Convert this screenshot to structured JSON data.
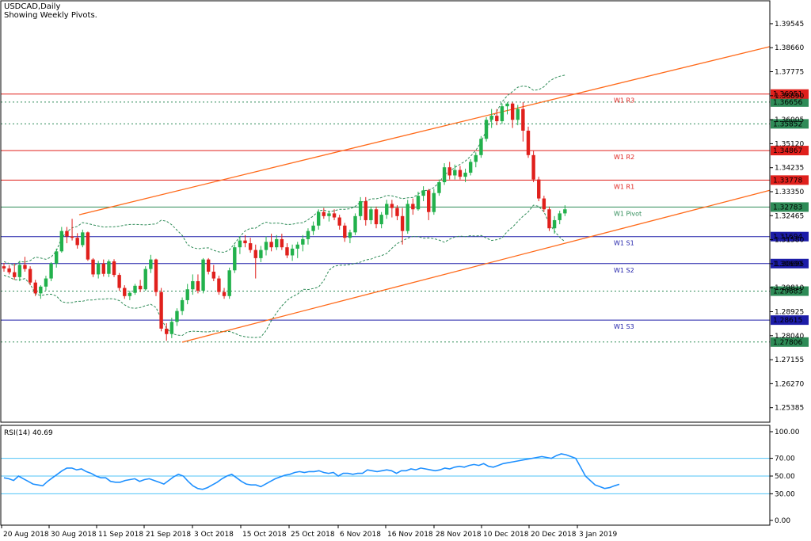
{
  "header": {
    "title": "USDCAD,Daily",
    "subtitle": "Showing Weekly Pivots."
  },
  "chart_data": {
    "type": "candlestick",
    "symbol": "USDCAD",
    "timeframe": "Daily",
    "ylim": [
      1.2485,
      1.4039
    ],
    "price_ticks": [
      "1.39545",
      "1.38660",
      "1.37775",
      "1.36890",
      "1.36005",
      "1.35120",
      "1.34235",
      "1.33350",
      "1.32465",
      "1.31580",
      "1.30695",
      "1.29810",
      "1.28925",
      "1.28040",
      "1.27155",
      "1.26270",
      "1.25385"
    ],
    "x_labels": [
      "20 Aug 2018",
      "30 Aug 2018",
      "11 Sep 2018",
      "21 Sep 2018",
      "3 Oct 2018",
      "15 Oct 2018",
      "25 Oct 2018",
      "6 Nov 2018",
      "16 Nov 2018",
      "28 Nov 2018",
      "10 Dec 2018",
      "20 Dec 2018",
      "3 Jan 2019"
    ],
    "candles": [
      [
        1.306,
        1.3072,
        1.304,
        1.3052
      ],
      [
        1.3052,
        1.3064,
        1.303,
        1.3038
      ],
      [
        1.3038,
        1.307,
        1.301,
        1.302
      ],
      [
        1.302,
        1.308,
        1.3005,
        1.3065
      ],
      [
        1.3065,
        1.3095,
        1.304,
        1.305
      ],
      [
        1.305,
        1.306,
        1.299,
        1.3
      ],
      [
        1.3,
        1.301,
        1.295,
        1.296
      ],
      [
        1.296,
        1.299,
        1.294,
        1.2985
      ],
      [
        1.2985,
        1.3025,
        1.297,
        1.3015
      ],
      [
        1.3015,
        1.3075,
        1.3005,
        1.307
      ],
      [
        1.307,
        1.3125,
        1.3055,
        1.3115
      ],
      [
        1.3115,
        1.3205,
        1.311,
        1.319
      ],
      [
        1.319,
        1.3205,
        1.3145,
        1.317
      ],
      [
        1.317,
        1.3235,
        1.3155,
        1.3165
      ],
      [
        1.3165,
        1.3182,
        1.3125,
        1.3138
      ],
      [
        1.3138,
        1.3195,
        1.313,
        1.3185
      ],
      [
        1.3185,
        1.3188,
        1.308,
        1.3085
      ],
      [
        1.3085,
        1.309,
        1.302,
        1.303
      ],
      [
        1.303,
        1.308,
        1.3015,
        1.307
      ],
      [
        1.307,
        1.3085,
        1.3022,
        1.3032
      ],
      [
        1.3032,
        1.3085,
        1.302,
        1.3078
      ],
      [
        1.3078,
        1.3086,
        1.302,
        1.3028
      ],
      [
        1.3028,
        1.3035,
        1.297,
        1.298
      ],
      [
        1.298,
        1.299,
        1.294,
        1.295
      ],
      [
        1.295,
        1.297,
        1.2935,
        1.2962
      ],
      [
        1.2962,
        1.2995,
        1.2955,
        1.2988
      ],
      [
        1.2988,
        1.301,
        1.2965,
        1.2975
      ],
      [
        1.2975,
        1.306,
        1.297,
        1.305
      ],
      [
        1.305,
        1.3102,
        1.3035,
        1.3085
      ],
      [
        1.3085,
        1.3088,
        1.295,
        1.2965
      ],
      [
        1.2965,
        1.298,
        1.282,
        1.283
      ],
      [
        1.283,
        1.285,
        1.2785,
        1.281
      ],
      [
        1.281,
        1.287,
        1.2795,
        1.2855
      ],
      [
        1.2855,
        1.2905,
        1.284,
        1.2895
      ],
      [
        1.2895,
        1.2945,
        1.288,
        1.2935
      ],
      [
        1.2935,
        1.2995,
        1.292,
        1.2975
      ],
      [
        1.2975,
        1.303,
        1.2955,
        1.3005
      ],
      [
        1.3005,
        1.303,
        1.296,
        1.297
      ],
      [
        1.297,
        1.309,
        1.296,
        1.3085
      ],
      [
        1.3085,
        1.309,
        1.303,
        1.304
      ],
      [
        1.304,
        1.3065,
        1.3005,
        1.3015
      ],
      [
        1.3015,
        1.3025,
        1.2955,
        1.2965
      ],
      [
        1.2965,
        1.298,
        1.294,
        1.295
      ],
      [
        1.295,
        1.3055,
        1.294,
        1.3045
      ],
      [
        1.3045,
        1.314,
        1.3035,
        1.313
      ],
      [
        1.313,
        1.317,
        1.3105,
        1.3155
      ],
      [
        1.3155,
        1.3175,
        1.313,
        1.3145
      ],
      [
        1.3145,
        1.3165,
        1.311,
        1.312
      ],
      [
        1.312,
        1.314,
        1.3015,
        1.309
      ],
      [
        1.309,
        1.3135,
        1.3075,
        1.312
      ],
      [
        1.312,
        1.317,
        1.31,
        1.315
      ],
      [
        1.315,
        1.318,
        1.3115,
        1.313
      ],
      [
        1.313,
        1.3175,
        1.312,
        1.316
      ],
      [
        1.316,
        1.318,
        1.312,
        1.313
      ],
      [
        1.313,
        1.3145,
        1.309,
        1.31
      ],
      [
        1.31,
        1.314,
        1.308,
        1.3125
      ],
      [
        1.3125,
        1.315,
        1.309,
        1.314
      ],
      [
        1.314,
        1.3175,
        1.3115,
        1.316
      ],
      [
        1.316,
        1.32,
        1.314,
        1.319
      ],
      [
        1.319,
        1.3225,
        1.3175,
        1.321
      ],
      [
        1.321,
        1.327,
        1.3195,
        1.326
      ],
      [
        1.326,
        1.3275,
        1.3235,
        1.3245
      ],
      [
        1.3245,
        1.3265,
        1.3225,
        1.3255
      ],
      [
        1.3255,
        1.327,
        1.323,
        1.324
      ],
      [
        1.324,
        1.325,
        1.3195,
        1.321
      ],
      [
        1.321,
        1.322,
        1.315,
        1.3165
      ],
      [
        1.3165,
        1.3195,
        1.3145,
        1.3185
      ],
      [
        1.3185,
        1.3255,
        1.3175,
        1.3245
      ],
      [
        1.3245,
        1.3315,
        1.323,
        1.33
      ],
      [
        1.33,
        1.3315,
        1.321,
        1.323
      ],
      [
        1.323,
        1.328,
        1.3215,
        1.327
      ],
      [
        1.327,
        1.328,
        1.32,
        1.3215
      ],
      [
        1.3215,
        1.326,
        1.32,
        1.325
      ],
      [
        1.325,
        1.3305,
        1.3235,
        1.329
      ],
      [
        1.329,
        1.3305,
        1.324,
        1.3275
      ],
      [
        1.3275,
        1.3285,
        1.323,
        1.3245
      ],
      [
        1.3245,
        1.3275,
        1.314,
        1.319
      ],
      [
        1.319,
        1.3305,
        1.318,
        1.329
      ],
      [
        1.329,
        1.331,
        1.325,
        1.327
      ],
      [
        1.327,
        1.3335,
        1.3265,
        1.332
      ],
      [
        1.332,
        1.3355,
        1.33,
        1.334
      ],
      [
        1.334,
        1.3345,
        1.323,
        1.326
      ],
      [
        1.326,
        1.3345,
        1.325,
        1.333
      ],
      [
        1.333,
        1.338,
        1.332,
        1.337
      ],
      [
        1.337,
        1.344,
        1.336,
        1.3425
      ],
      [
        1.3425,
        1.3445,
        1.338,
        1.3395
      ],
      [
        1.3395,
        1.3435,
        1.338,
        1.3415
      ],
      [
        1.3415,
        1.343,
        1.338,
        1.339
      ],
      [
        1.339,
        1.342,
        1.337,
        1.3405
      ],
      [
        1.3405,
        1.3455,
        1.3395,
        1.3445
      ],
      [
        1.3445,
        1.348,
        1.3425,
        1.347
      ],
      [
        1.347,
        1.354,
        1.346,
        1.353
      ],
      [
        1.353,
        1.361,
        1.352,
        1.36
      ],
      [
        1.36,
        1.364,
        1.357,
        1.3615
      ],
      [
        1.3615,
        1.364,
        1.358,
        1.3595
      ],
      [
        1.3595,
        1.366,
        1.3585,
        1.365
      ],
      [
        1.365,
        1.3665,
        1.362,
        1.366
      ],
      [
        1.366,
        1.3665,
        1.357,
        1.36
      ],
      [
        1.36,
        1.3655,
        1.358,
        1.364
      ],
      [
        1.364,
        1.3665,
        1.352,
        1.356
      ],
      [
        1.356,
        1.3575,
        1.346,
        1.347
      ],
      [
        1.347,
        1.3485,
        1.337,
        1.338
      ],
      [
        1.338,
        1.339,
        1.33,
        1.331
      ],
      [
        1.331,
        1.332,
        1.326,
        1.327
      ],
      [
        1.327,
        1.328,
        1.319,
        1.32
      ],
      [
        1.32,
        1.3245,
        1.318,
        1.323
      ],
      [
        1.323,
        1.3265,
        1.3215,
        1.3255
      ],
      [
        1.3255,
        1.3285,
        1.3245,
        1.327
      ]
    ],
    "pivot_levels": [
      {
        "name": "W1 R3",
        "value": "1.36951",
        "color": "#e0201c"
      },
      {
        "name": "W1 R2",
        "value": "1.34867",
        "color": "#e0201c"
      },
      {
        "name": "W1 R1",
        "value": "1.33778",
        "color": "#e0201c"
      },
      {
        "name": "W1 Pivot",
        "value": "1.32783",
        "color": "#2e8b57"
      },
      {
        "name": "W1 S1",
        "value": "1.31694",
        "color": "#1c1ca8"
      },
      {
        "name": "W1 S2",
        "value": "1.30699",
        "color": "#1c1ca8"
      },
      {
        "name": "W1 S3",
        "value": "1.28615",
        "color": "#1c1ca8"
      }
    ],
    "dotted_levels": [
      "1.36656",
      "1.35852",
      "1.29683",
      "1.27806"
    ],
    "rsi": {
      "label": "RSI(14) 40.69",
      "levels": [
        70,
        50,
        30
      ],
      "ticks": [
        "100.00",
        "70.00",
        "50.00",
        "30.00",
        "0.00"
      ],
      "values": [
        48,
        47,
        45,
        50,
        47,
        44,
        41,
        40,
        39,
        44,
        48,
        52,
        56,
        59,
        59,
        57,
        58,
        55,
        53,
        50,
        48,
        48,
        44,
        43,
        43,
        45,
        46,
        47,
        44,
        46,
        47,
        45,
        43,
        41,
        45,
        49,
        52,
        50,
        44,
        39,
        36,
        35,
        37,
        40,
        43,
        47,
        50,
        52,
        48,
        44,
        41,
        40,
        40,
        38,
        41,
        44,
        47,
        49,
        51,
        52,
        54,
        55,
        54,
        55,
        55,
        56,
        54,
        53,
        54,
        50,
        53,
        53,
        52,
        53,
        53,
        57,
        56,
        55,
        56,
        57,
        56,
        53,
        56,
        56,
        58,
        57,
        59,
        58,
        57,
        56,
        57,
        59,
        58,
        60,
        61,
        60,
        62,
        63,
        62,
        64,
        61,
        60,
        62,
        64,
        65,
        66,
        67,
        68,
        69,
        70,
        71,
        72,
        71,
        70,
        73,
        75,
        74,
        72,
        70,
        60,
        50,
        45,
        40,
        38,
        36,
        37,
        39,
        40.69
      ],
      "color": "#1e90ff"
    },
    "colors": {
      "bull": "#22b14c",
      "bear": "#e0201c",
      "channel": "#ff6a1a",
      "bands": "#2e8b57"
    }
  }
}
